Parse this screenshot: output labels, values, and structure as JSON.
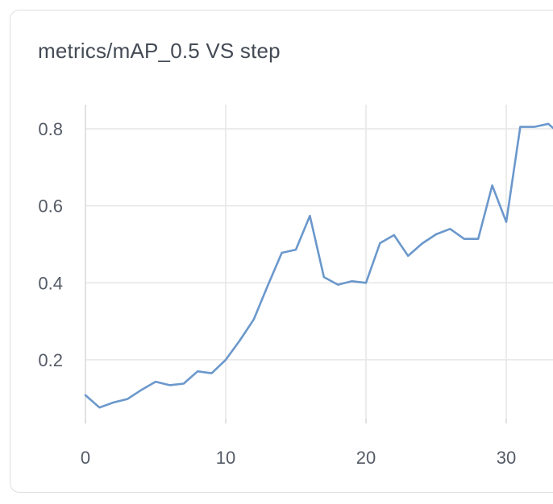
{
  "chart_data": {
    "type": "line",
    "title": "metrics/mAP_0.5 VS step",
    "xlabel": "",
    "ylabel": "",
    "xlim": [
      0,
      33
    ],
    "ylim": [
      0.05,
      0.85
    ],
    "x_ticks": [
      0,
      10,
      20,
      30
    ],
    "y_ticks": [
      0.2,
      0.4,
      0.6,
      0.8
    ],
    "x_tick_labels": [
      "0",
      "10",
      "20",
      "30"
    ],
    "y_tick_labels": [
      "0.2",
      "0.4",
      "0.6",
      "0.8"
    ],
    "grid": true,
    "line_color": "#6b98cc",
    "series": [
      {
        "x": [
          0,
          1,
          2,
          3,
          4,
          5,
          6,
          7,
          8,
          9,
          10,
          11,
          12,
          13,
          14,
          15,
          16,
          17,
          18,
          19,
          20,
          21,
          22,
          23,
          24,
          25,
          26,
          27,
          28,
          29,
          30,
          31,
          32,
          33,
          33.4
        ],
        "y": [
          0.108,
          0.076,
          0.089,
          0.098,
          0.122,
          0.143,
          0.134,
          0.138,
          0.17,
          0.165,
          0.2,
          0.25,
          0.305,
          0.393,
          0.478,
          0.486,
          0.574,
          0.415,
          0.395,
          0.404,
          0.4,
          0.503,
          0.524,
          0.47,
          0.502,
          0.526,
          0.54,
          0.514,
          0.514,
          0.653,
          0.558,
          0.805,
          0.805,
          0.813,
          0.8
        ]
      }
    ]
  }
}
